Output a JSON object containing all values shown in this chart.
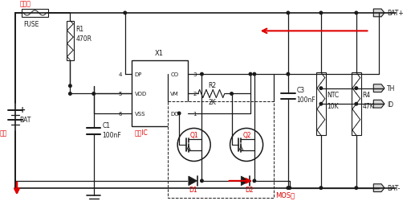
{
  "bg_color": "#ffffff",
  "line_color": "#1a1a1a",
  "red_color": "#e00000",
  "text_fuse_cn": "保险丝",
  "text_fuse_en": "FUSE",
  "text_bat": "BAT",
  "text_bat_cn": "电芯",
  "text_r1": "R1",
  "text_r1_val": "470R",
  "text_x1": "X1",
  "text_dp": "DP",
  "text_co": "CO",
  "text_vdd": "VDD",
  "text_vm": "VM",
  "text_vss": "VSS",
  "text_do": "DO",
  "text_pin4": "4",
  "text_pin5": "5",
  "text_pin6": "6",
  "text_pin3": "3",
  "text_pin2": "2",
  "text_pin1": "1",
  "text_ctrl_ic": "控制IC",
  "text_c1": "C1",
  "text_c1_val": "100nF",
  "text_r2": "R2",
  "text_r2_val": "2K",
  "text_q1": "Q1",
  "text_q2": "Q2",
  "text_d1": "D1",
  "text_d2": "D2",
  "text_mos": "MOS管",
  "text_c3": "C3",
  "text_c3_val": "100nF",
  "text_ntc": "NTC",
  "text_ntc_val": "10K",
  "text_r4": "R4",
  "text_r4_val": "47K",
  "text_bat_plus": "BAT+",
  "text_th": "TH",
  "text_id": "ID",
  "text_bat_minus": "BAT-"
}
